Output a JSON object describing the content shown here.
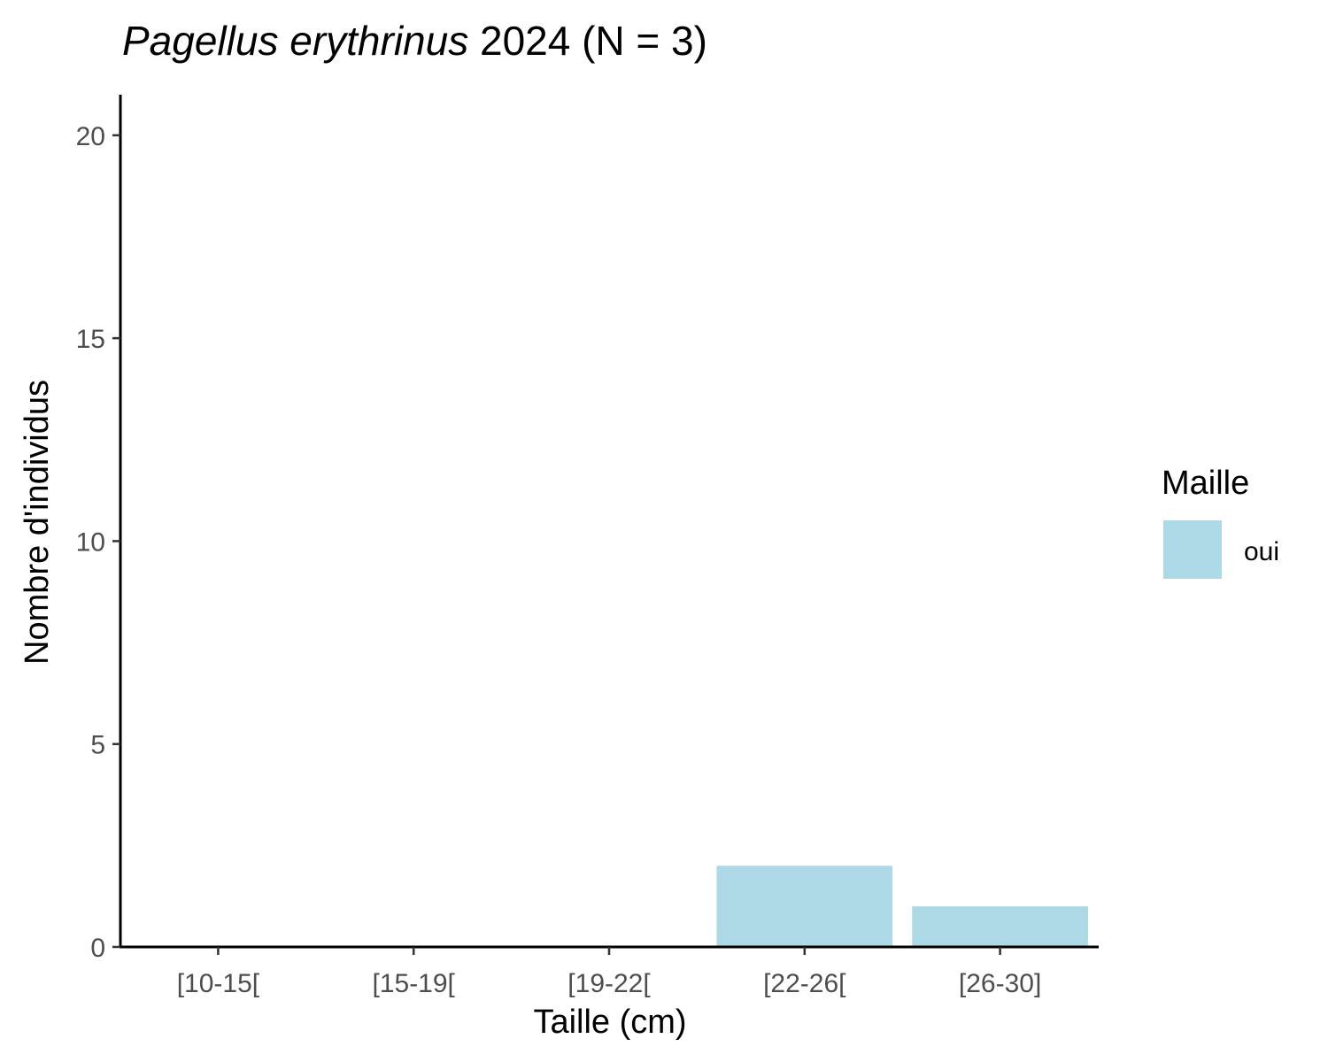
{
  "chart_data": {
    "type": "bar",
    "title": {
      "italic": "Pagellus erythrinus",
      "rest": " 2024 (N = 3)"
    },
    "xlabel": "Taille (cm)",
    "ylabel": "Nombre d'individus",
    "categories": [
      "[10-15[",
      "[15-19[",
      "[19-22[",
      "[22-26[",
      "[26-30]"
    ],
    "series": [
      {
        "name": "oui",
        "values": [
          0,
          0,
          0,
          2,
          1
        ],
        "color": "#add8e6"
      }
    ],
    "ylim": [
      0,
      21
    ],
    "yticks": [
      0,
      5,
      10,
      15,
      20
    ],
    "ytick_labels": [
      "0",
      "5",
      "10",
      "15",
      "20"
    ],
    "grid": false,
    "legend": {
      "title": "Maille",
      "position": "right",
      "items": [
        {
          "label": "oui",
          "color": "#add8e6"
        }
      ]
    }
  }
}
